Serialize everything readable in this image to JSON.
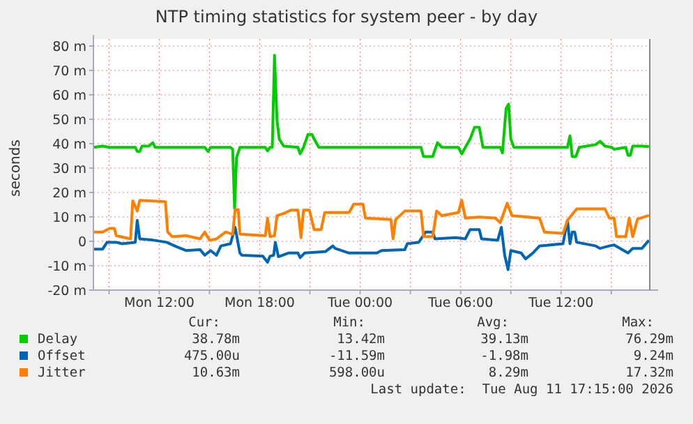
{
  "chart_data": {
    "type": "line",
    "title": "NTP timing statistics for system peer - by day",
    "ylabel": "seconds",
    "xlim": [
      "2026-08-10T08:04",
      "2026-08-11T17:18"
    ],
    "xticks": [
      {
        "value": "2026-08-10T09:00",
        "label": null
      },
      {
        "value": "2026-08-10T12:00",
        "label": "Mon 12:00"
      },
      {
        "value": "2026-08-10T15:00",
        "label": null
      },
      {
        "value": "2026-08-10T18:00",
        "label": "Mon 18:00"
      },
      {
        "value": "2026-08-10T21:00",
        "label": null
      },
      {
        "value": "2026-08-11T00:00",
        "label": "Tue 00:00"
      },
      {
        "value": "2026-08-11T03:00",
        "label": null
      },
      {
        "value": "2026-08-11T06:00",
        "label": "Tue 06:00"
      },
      {
        "value": "2026-08-11T09:00",
        "label": null
      },
      {
        "value": "2026-08-11T12:00",
        "label": "Tue 12:00"
      },
      {
        "value": "2026-08-11T15:00",
        "label": null
      }
    ],
    "ylim": [
      -20,
      80
    ],
    "yticks": [
      {
        "value": -20,
        "label": "-20 m"
      },
      {
        "value": -10,
        "label": "-10 m"
      },
      {
        "value": 0,
        "label": "0"
      },
      {
        "value": 10,
        "label": "10 m"
      },
      {
        "value": 20,
        "label": "20 m"
      },
      {
        "value": 30,
        "label": "30 m"
      },
      {
        "value": 40,
        "label": "40 m"
      },
      {
        "value": 50,
        "label": "50 m"
      },
      {
        "value": 60,
        "label": "60 m"
      },
      {
        "value": 70,
        "label": "70 m"
      },
      {
        "value": 80,
        "label": "80 m"
      }
    ],
    "grid": true,
    "legend": "bottom",
    "series": [
      {
        "name": "Delay",
        "color": "#00cc00",
        "x": [
          "2026-08-10T08:04",
          "2026-08-10T08:37",
          "2026-08-10T09:02",
          "2026-08-10T10:34",
          "2026-08-10T10:41",
          "2026-08-10T10:50",
          "2026-08-10T10:58",
          "2026-08-10T11:23",
          "2026-08-10T11:37",
          "2026-08-10T11:45",
          "2026-08-10T14:43",
          "2026-08-10T14:55",
          "2026-08-10T15:04",
          "2026-08-10T16:15",
          "2026-08-10T16:23",
          "2026-08-10T16:30",
          "2026-08-10T16:37",
          "2026-08-10T16:49",
          "2026-08-10T18:20",
          "2026-08-10T18:28",
          "2026-08-10T18:37",
          "2026-08-10T18:45",
          "2026-08-10T18:53",
          "2026-08-10T19:02",
          "2026-08-10T19:10",
          "2026-08-10T19:26",
          "2026-08-10T20:17",
          "2026-08-10T20:25",
          "2026-08-10T20:37",
          "2026-08-10T20:53",
          "2026-08-10T21:07",
          "2026-08-10T21:15",
          "2026-08-10T21:32",
          "2026-08-11T03:38",
          "2026-08-11T03:47",
          "2026-08-11T04:20",
          "2026-08-11T04:37",
          "2026-08-11T04:53",
          "2026-08-11T05:52",
          "2026-08-11T06:04",
          "2026-08-11T06:17",
          "2026-08-11T06:34",
          "2026-08-11T06:50",
          "2026-08-11T07:07",
          "2026-08-11T07:20",
          "2026-08-11T08:22",
          "2026-08-11T08:30",
          "2026-08-11T08:43",
          "2026-08-11T08:52",
          "2026-08-11T09:00",
          "2026-08-11T09:11",
          "2026-08-11T12:23",
          "2026-08-11T12:32",
          "2026-08-11T12:40",
          "2026-08-11T12:53",
          "2026-08-11T13:05",
          "2026-08-11T14:04",
          "2026-08-11T14:20",
          "2026-08-11T14:37",
          "2026-08-11T15:02",
          "2026-08-11T15:10",
          "2026-08-11T15:52",
          "2026-08-11T16:00",
          "2026-08-11T16:08",
          "2026-08-11T16:17",
          "2026-08-11T16:50",
          "2026-08-11T17:15"
        ],
        "values": [
          38.5,
          39,
          38.5,
          38.5,
          36.8,
          36.8,
          39,
          39,
          40.4,
          38.5,
          38.5,
          36.8,
          38.5,
          38.5,
          37.7,
          13.4,
          34.3,
          38.5,
          38.5,
          37,
          38.5,
          38.5,
          76.2,
          49.5,
          41.9,
          39,
          38.5,
          35.8,
          38.5,
          43.8,
          43.8,
          41.9,
          38.5,
          38.5,
          34.7,
          34.7,
          40.4,
          38.5,
          38.5,
          35.8,
          38.5,
          41.9,
          46.7,
          46.7,
          38.5,
          38.5,
          36.2,
          54.3,
          56.2,
          41.9,
          38.5,
          38.5,
          43.2,
          34.7,
          34.7,
          38.5,
          39.6,
          41,
          39,
          38.5,
          37.7,
          38.5,
          35.2,
          35.2,
          39,
          39,
          38.8
        ]
      },
      {
        "name": "Offset",
        "color": "#0066b3",
        "x": [
          "2026-08-10T08:04",
          "2026-08-10T08:37",
          "2026-08-10T08:53",
          "2026-08-10T09:26",
          "2026-08-10T09:47",
          "2026-08-10T10:34",
          "2026-08-10T10:41",
          "2026-08-10T10:50",
          "2026-08-10T11:32",
          "2026-08-10T12:26",
          "2026-08-10T13:04",
          "2026-08-10T13:37",
          "2026-08-10T14:26",
          "2026-08-10T14:43",
          "2026-08-10T15:04",
          "2026-08-10T15:25",
          "2026-08-10T15:41",
          "2026-08-10T16:15",
          "2026-08-10T16:32",
          "2026-08-10T16:49",
          "2026-08-10T16:56",
          "2026-08-10T18:11",
          "2026-08-10T18:28",
          "2026-08-10T18:37",
          "2026-08-10T18:50",
          "2026-08-10T18:56",
          "2026-08-10T19:07",
          "2026-08-10T19:43",
          "2026-08-10T20:17",
          "2026-08-10T20:25",
          "2026-08-10T20:41",
          "2026-08-10T21:56",
          "2026-08-10T22:22",
          "2026-08-10T22:30",
          "2026-08-10T23:20",
          "2026-08-11T01:00",
          "2026-08-11T01:17",
          "2026-08-11T02:40",
          "2026-08-11T02:49",
          "2026-08-11T03:30",
          "2026-08-11T03:55",
          "2026-08-11T04:20",
          "2026-08-11T04:28",
          "2026-08-11T05:43",
          "2026-08-11T06:17",
          "2026-08-11T06:34",
          "2026-08-11T07:07",
          "2026-08-11T07:15",
          "2026-08-11T08:13",
          "2026-08-11T08:26",
          "2026-08-11T08:38",
          "2026-08-11T08:50",
          "2026-08-11T09:00",
          "2026-08-11T09:37",
          "2026-08-11T09:53",
          "2026-08-11T10:19",
          "2026-08-11T10:43",
          "2026-08-11T12:07",
          "2026-08-11T12:23",
          "2026-08-11T12:32",
          "2026-08-11T12:40",
          "2026-08-11T12:49",
          "2026-08-11T12:56",
          "2026-08-11T14:04",
          "2026-08-11T14:20",
          "2026-08-11T14:53",
          "2026-08-11T15:10",
          "2026-08-11T16:00",
          "2026-08-11T16:17",
          "2026-08-11T16:50",
          "2026-08-11T17:15"
        ],
        "values": [
          -3.2,
          -3.2,
          -0.4,
          -0.4,
          -1,
          -0.4,
          8.6,
          1,
          0.6,
          -0.4,
          -2.3,
          -3.8,
          -3.4,
          -5.7,
          -3.8,
          -5.7,
          -1.9,
          -1,
          5.7,
          -4.8,
          -5.7,
          -6.1,
          -8.6,
          -6.1,
          -5.7,
          -0.4,
          -6.3,
          -4.8,
          -4.8,
          -6.7,
          -4.8,
          -4.2,
          -1.9,
          -2.9,
          -4.8,
          -4.8,
          -3.8,
          -3.4,
          -1,
          -0.4,
          3.8,
          3.8,
          1,
          1.5,
          1,
          4.8,
          4.8,
          1,
          0.4,
          5.7,
          -5.7,
          -11.6,
          -3.8,
          -4.8,
          -7.2,
          -4.8,
          -1.9,
          -1,
          8.6,
          -1,
          3.8,
          3.8,
          -0.4,
          -1.9,
          -2.9,
          -1.9,
          -1.5,
          -4.8,
          -2.9,
          -2.9,
          0.4
        ]
      },
      {
        "name": "Jitter",
        "color": "#ff8000",
        "x": [
          "2026-08-10T08:04",
          "2026-08-10T08:37",
          "2026-08-10T09:02",
          "2026-08-10T09:19",
          "2026-08-10T09:26",
          "2026-08-10T10:17",
          "2026-08-10T10:25",
          "2026-08-10T10:41",
          "2026-08-10T10:50",
          "2026-08-10T12:22",
          "2026-08-10T12:30",
          "2026-08-10T12:47",
          "2026-08-10T13:37",
          "2026-08-10T14:26",
          "2026-08-10T14:43",
          "2026-08-10T15:00",
          "2026-08-10T15:25",
          "2026-08-10T15:58",
          "2026-08-10T16:23",
          "2026-08-10T16:32",
          "2026-08-10T16:43",
          "2026-08-10T16:49",
          "2026-08-10T18:20",
          "2026-08-10T18:28",
          "2026-08-10T18:37",
          "2026-08-10T18:53",
          "2026-08-10T19:02",
          "2026-08-10T19:26",
          "2026-08-10T19:52",
          "2026-08-10T20:17",
          "2026-08-10T20:28",
          "2026-08-10T20:37",
          "2026-08-10T20:58",
          "2026-08-10T21:15",
          "2026-08-10T21:40",
          "2026-08-10T21:53",
          "2026-08-10T23:20",
          "2026-08-10T23:37",
          "2026-08-11T00:10",
          "2026-08-11T00:19",
          "2026-08-11T01:50",
          "2026-08-11T01:58",
          "2026-08-11T02:07",
          "2026-08-11T02:40",
          "2026-08-11T03:38",
          "2026-08-11T03:47",
          "2026-08-11T04:20",
          "2026-08-11T04:34",
          "2026-08-11T04:53",
          "2026-08-11T05:52",
          "2026-08-11T06:04",
          "2026-08-11T06:17",
          "2026-08-11T07:07",
          "2026-08-11T08:05",
          "2026-08-11T08:22",
          "2026-08-11T08:47",
          "2026-08-11T09:04",
          "2026-08-11T10:43",
          "2026-08-11T11:00",
          "2026-08-11T12:07",
          "2026-08-11T12:23",
          "2026-08-11T12:56",
          "2026-08-11T14:37",
          "2026-08-11T14:53",
          "2026-08-11T15:10",
          "2026-08-11T15:19",
          "2026-08-11T15:52",
          "2026-08-11T16:04",
          "2026-08-11T16:17",
          "2026-08-11T16:34",
          "2026-08-11T17:15"
        ],
        "values": [
          3.8,
          3.8,
          5.3,
          5.3,
          2.3,
          1,
          16.6,
          12.4,
          16.8,
          16.2,
          3.8,
          1.9,
          2.3,
          1,
          3.8,
          0.4,
          1,
          3.8,
          2.9,
          13,
          13,
          2.9,
          2.3,
          9.5,
          1.9,
          2.3,
          10.5,
          11.4,
          12.8,
          12.8,
          1.5,
          12.8,
          12.8,
          4.8,
          4.8,
          11.8,
          11.8,
          15.2,
          15.2,
          9.5,
          8.9,
          1,
          8.9,
          12.4,
          12.4,
          1.9,
          1.9,
          12.4,
          10.5,
          11.8,
          16.8,
          9.5,
          9.9,
          9.5,
          7.6,
          15.6,
          10.5,
          9.5,
          3.8,
          3.2,
          8.6,
          13.3,
          13.3,
          9.5,
          9.5,
          1.9,
          1.9,
          9.5,
          1.9,
          9.1,
          10.6
        ]
      }
    ],
    "annotations": [
      "Cur:",
      "Min:",
      "Avg:",
      "Max:",
      "38.78m",
      "13.42m",
      "39.13m",
      "76.29m",
      "475.00u",
      "-11.59m",
      "-1.98m",
      "9.24m",
      "10.63m",
      "598.00u",
      "8.29m",
      "17.32m",
      "Last update:  Tue Aug 11 17:15:00 2026"
    ]
  }
}
